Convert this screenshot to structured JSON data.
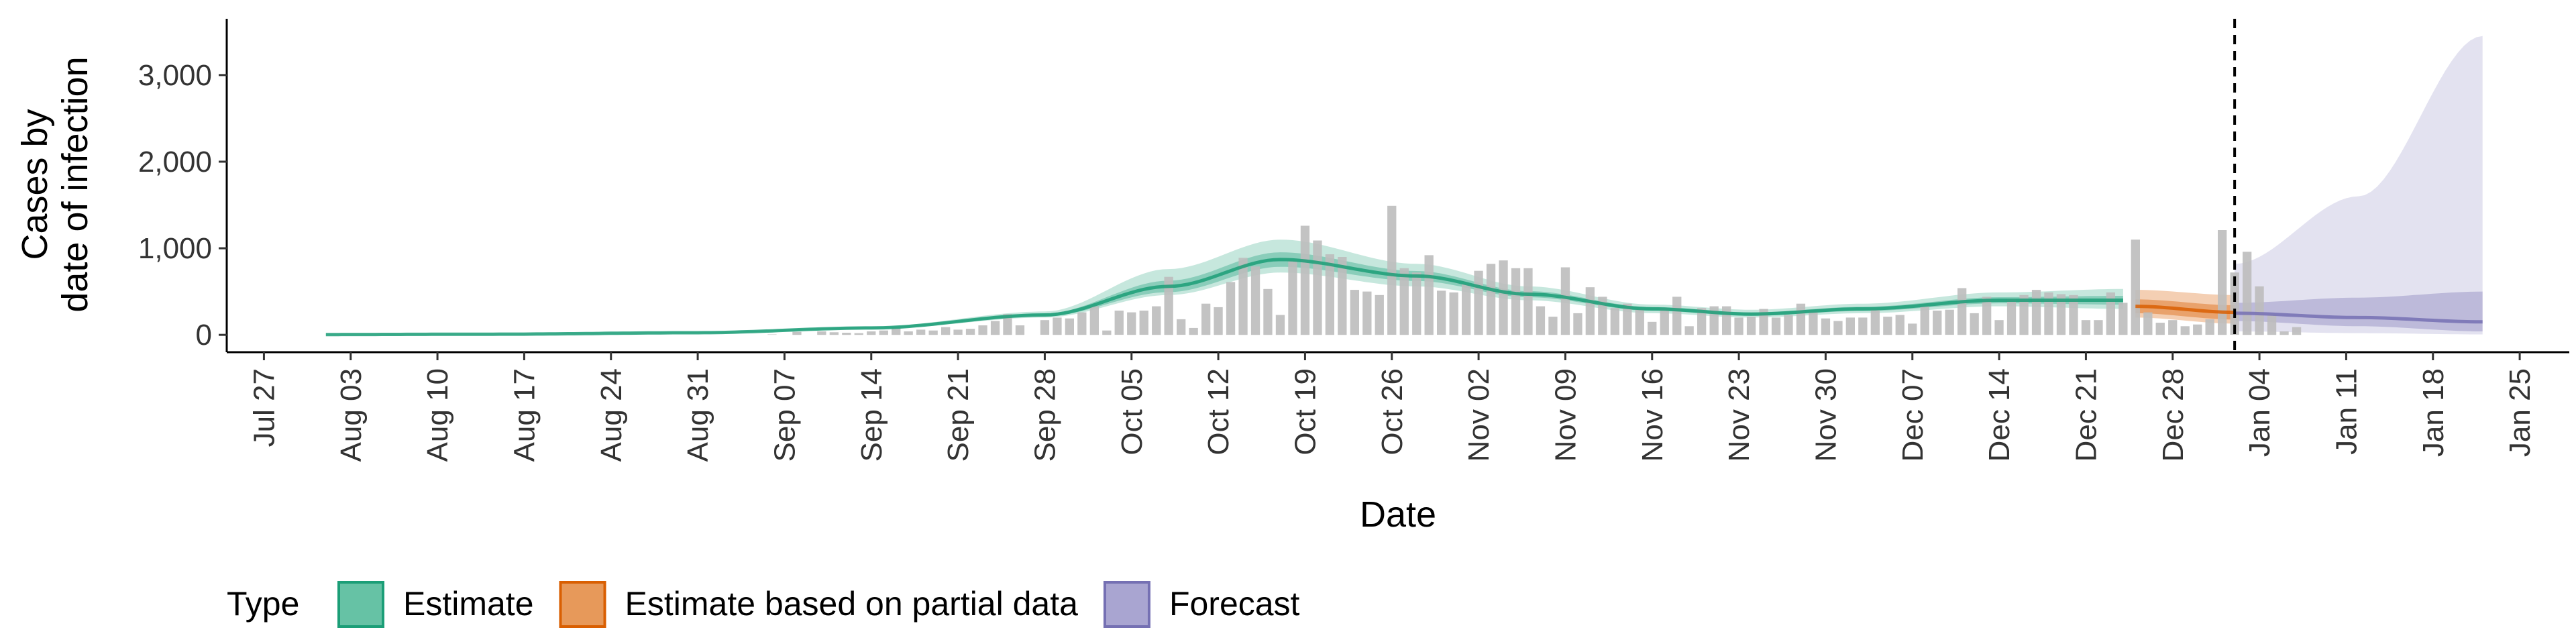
{
  "chart_data": {
    "type": "bar",
    "xlabel": "Date",
    "ylabel_lines": [
      "Cases by",
      "date of infection"
    ],
    "x_range": [
      "2020-07-24",
      "2021-01-29"
    ],
    "ylim": [
      -200,
      3650
    ],
    "y_ticks": [
      {
        "value": 0,
        "label": "0"
      },
      {
        "value": 1000,
        "label": "1,000"
      },
      {
        "value": 2000,
        "label": "2,000"
      },
      {
        "value": 3000,
        "label": "3,000"
      }
    ],
    "x_ticks": [
      {
        "date": "2020-07-27",
        "label": "Jul 27"
      },
      {
        "date": "2020-08-03",
        "label": "Aug 03"
      },
      {
        "date": "2020-08-10",
        "label": "Aug 10"
      },
      {
        "date": "2020-08-17",
        "label": "Aug 17"
      },
      {
        "date": "2020-08-24",
        "label": "Aug 24"
      },
      {
        "date": "2020-08-31",
        "label": "Aug 31"
      },
      {
        "date": "2020-09-07",
        "label": "Sep 07"
      },
      {
        "date": "2020-09-14",
        "label": "Sep 14"
      },
      {
        "date": "2020-09-21",
        "label": "Sep 21"
      },
      {
        "date": "2020-09-28",
        "label": "Sep 28"
      },
      {
        "date": "2020-10-05",
        "label": "Oct 05"
      },
      {
        "date": "2020-10-12",
        "label": "Oct 12"
      },
      {
        "date": "2020-10-19",
        "label": "Oct 19"
      },
      {
        "date": "2020-10-26",
        "label": "Oct 26"
      },
      {
        "date": "2020-11-02",
        "label": "Nov 02"
      },
      {
        "date": "2020-11-09",
        "label": "Nov 09"
      },
      {
        "date": "2020-11-16",
        "label": "Nov 16"
      },
      {
        "date": "2020-11-23",
        "label": "Nov 23"
      },
      {
        "date": "2020-11-30",
        "label": "Nov 30"
      },
      {
        "date": "2020-12-07",
        "label": "Dec 07"
      },
      {
        "date": "2020-12-14",
        "label": "Dec 14"
      },
      {
        "date": "2020-12-21",
        "label": "Dec 21"
      },
      {
        "date": "2020-12-28",
        "label": "Dec 28"
      },
      {
        "date": "2021-01-04",
        "label": "Jan 04"
      },
      {
        "date": "2021-01-11",
        "label": "Jan 11"
      },
      {
        "date": "2021-01-18",
        "label": "Jan 18"
      },
      {
        "date": "2021-01-25",
        "label": "Jan 25"
      }
    ],
    "forecast_start": "2021-01-02",
    "grid": false,
    "legend": {
      "title": "Type",
      "position": "bottom-left",
      "items": [
        {
          "label": "Estimate",
          "fill": "#66C2A5",
          "stroke": "#1B9E77"
        },
        {
          "label": "Estimate based on partial data",
          "fill": "#E7995A",
          "stroke": "#D95F02"
        },
        {
          "label": "Forecast",
          "fill": "#A9A5D1",
          "stroke": "#7570B3"
        }
      ]
    },
    "colors": {
      "bars": "#BDBDBD",
      "estimate": "#1B9E77",
      "partial": "#D95F02",
      "forecast": "#7570B3"
    },
    "observed_cases": {
      "start_date": "2020-09-06",
      "values": [
        5,
        0,
        35,
        0,
        40,
        30,
        25,
        20,
        40,
        50,
        80,
        40,
        60,
        50,
        90,
        60,
        70,
        110,
        160,
        240,
        110,
        0,
        170,
        200,
        190,
        260,
        330,
        50,
        280,
        260,
        280,
        330,
        670,
        180,
        80,
        360,
        320,
        610,
        890,
        790,
        530,
        230,
        850,
        1260,
        1090,
        930,
        900,
        520,
        500,
        460,
        1490,
        770,
        720,
        920,
        510,
        490,
        590,
        740,
        820,
        860,
        770,
        770,
        330,
        210,
        780,
        250,
        550,
        440,
        310,
        360,
        300,
        150,
        310,
        440,
        100,
        310,
        330,
        330,
        200,
        210,
        300,
        200,
        230,
        360,
        270,
        190,
        160,
        200,
        200,
        290,
        210,
        230,
        130,
        330,
        280,
        290,
        540,
        250,
        440,
        170,
        420,
        460,
        520,
        490,
        470,
        460,
        170,
        170,
        490,
        370,
        1100,
        260,
        140,
        170,
        100,
        120,
        180,
        1210,
        720,
        960,
        560,
        240,
        40,
        90
      ]
    },
    "estimate": {
      "start_date": "2020-08-01",
      "end_date": "2020-12-24",
      "key_points": [
        {
          "date": "2020-08-01",
          "median": 4,
          "lower": 3,
          "upper": 5
        },
        {
          "date": "2020-08-15",
          "median": 8,
          "lower": 6,
          "upper": 10
        },
        {
          "date": "2020-08-31",
          "median": 25,
          "lower": 20,
          "upper": 32
        },
        {
          "date": "2020-09-14",
          "median": 80,
          "lower": 65,
          "upper": 95
        },
        {
          "date": "2020-09-28",
          "median": 230,
          "lower": 200,
          "upper": 270
        },
        {
          "date": "2020-10-08",
          "median": 560,
          "lower": 460,
          "upper": 760
        },
        {
          "date": "2020-10-17",
          "median": 870,
          "lower": 720,
          "upper": 1100
        },
        {
          "date": "2020-10-28",
          "median": 680,
          "lower": 560,
          "upper": 820
        },
        {
          "date": "2020-11-06",
          "median": 470,
          "lower": 400,
          "upper": 560
        },
        {
          "date": "2020-11-16",
          "median": 300,
          "lower": 250,
          "upper": 350
        },
        {
          "date": "2020-11-24",
          "median": 240,
          "lower": 200,
          "upper": 290
        },
        {
          "date": "2020-12-03",
          "median": 300,
          "lower": 250,
          "upper": 360
        },
        {
          "date": "2020-12-14",
          "median": 400,
          "lower": 330,
          "upper": 490
        },
        {
          "date": "2020-12-24",
          "median": 400,
          "lower": 300,
          "upper": 530
        }
      ]
    },
    "partial_estimate": {
      "start_date": "2020-12-25",
      "end_date": "2021-01-02",
      "key_points": [
        {
          "date": "2020-12-25",
          "median": 330,
          "lower": 200,
          "upper": 520
        },
        {
          "date": "2021-01-02",
          "median": 260,
          "lower": 130,
          "upper": 460
        }
      ]
    },
    "forecast": {
      "start_date": "2021-01-02",
      "end_date": "2021-01-22",
      "key_points": [
        {
          "date": "2021-01-02",
          "median": 250,
          "lower": 40,
          "upper": 820,
          "inner_lower": 160,
          "inner_upper": 370
        },
        {
          "date": "2021-01-12",
          "median": 200,
          "lower": 20,
          "upper": 1600,
          "inner_lower": 100,
          "inner_upper": 430
        },
        {
          "date": "2021-01-22",
          "median": 150,
          "lower": 5,
          "upper": 3450,
          "inner_lower": 40,
          "inner_upper": 500
        }
      ]
    }
  }
}
